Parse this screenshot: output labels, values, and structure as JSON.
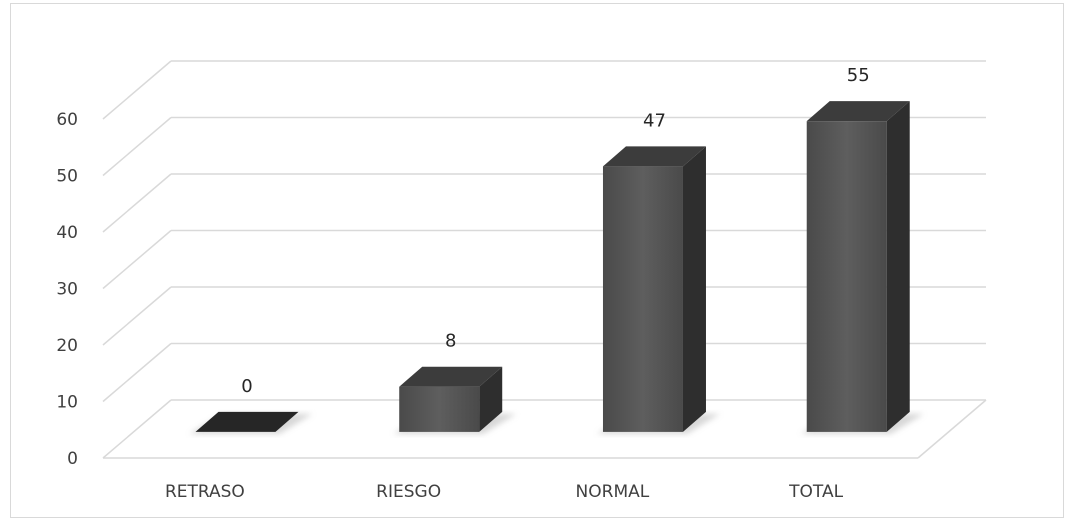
{
  "chart_data": {
    "type": "bar",
    "style": "3d-column",
    "categories": [
      "RETRASO",
      "RIESGO",
      "NORMAL",
      "TOTAL"
    ],
    "values": [
      0,
      8,
      47,
      55
    ],
    "data_labels": [
      "0",
      "8",
      "47",
      "55"
    ],
    "y_ticks": [
      "0",
      "10",
      "20",
      "30",
      "40",
      "50",
      "60"
    ],
    "ylim": [
      0,
      60
    ],
    "grid": true,
    "legend": "none",
    "colors": {
      "front": "#555555",
      "side": "#2e2e2e",
      "top": "#3c3c3c",
      "grid": "#d9d9d9"
    }
  }
}
